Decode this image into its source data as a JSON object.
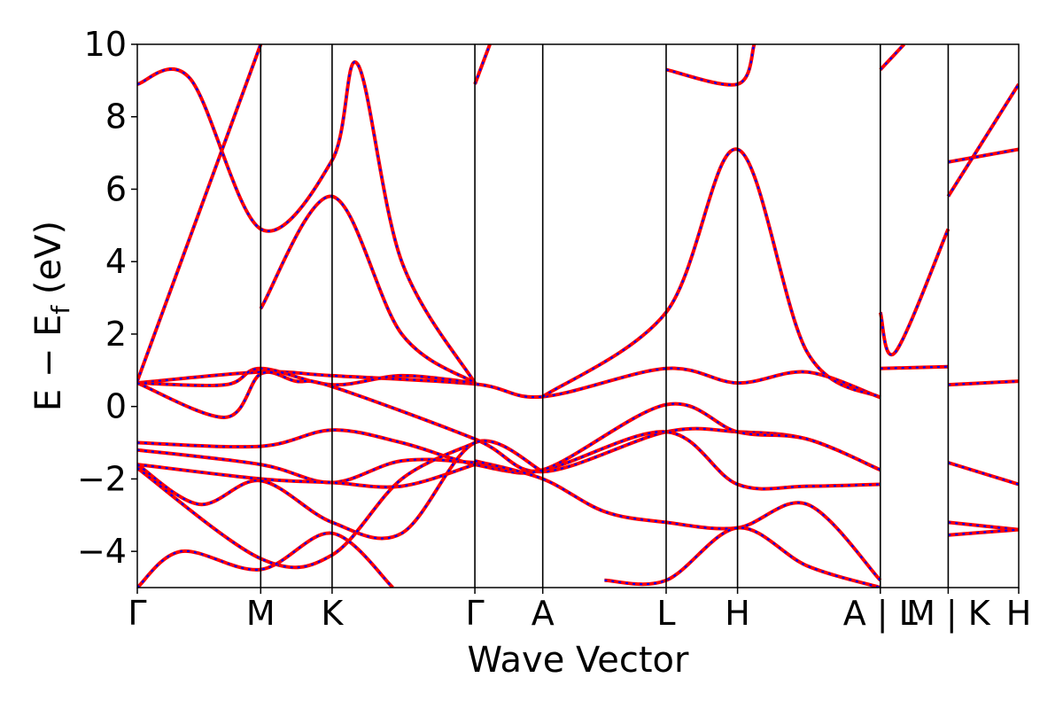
{
  "chart_data": {
    "type": "line",
    "xlabel": "Wave Vector",
    "ylabel_main": "E − E",
    "ylabel_sub": "f",
    "ylabel_unit": " (eV)",
    "ylim": [
      -5,
      10
    ],
    "yticks": [
      -4,
      -2,
      0,
      2,
      4,
      6,
      8,
      10
    ],
    "ytick_labels": [
      "−4",
      "−2",
      "0",
      "2",
      "4",
      "6",
      "8",
      "10"
    ],
    "xlim": [
      0,
      1
    ],
    "kpoints": [
      {
        "label": "Γ",
        "x": 0.0,
        "divider": false
      },
      {
        "label": "M",
        "x": 0.14,
        "divider": true
      },
      {
        "label": "K",
        "x": 0.221,
        "divider": true
      },
      {
        "label": "Γ",
        "x": 0.383,
        "divider": true
      },
      {
        "label": "A",
        "x": 0.46,
        "divider": true
      },
      {
        "label": "L",
        "x": 0.6,
        "divider": true
      },
      {
        "label": "H",
        "x": 0.681,
        "divider": true
      },
      {
        "label": "A | L",
        "x": 0.843,
        "divider": true
      },
      {
        "label": "M | K",
        "x": 0.92,
        "divider": true
      },
      {
        "label": "H",
        "x": 1.0,
        "divider": false
      }
    ],
    "series_style": {
      "solid_color": "#ff0000",
      "dashed_color": "#0000ff"
    },
    "bands": [
      [
        [
          0,
          0.65
        ],
        [
          0.14,
          0.95
        ],
        [
          0.221,
          0.85
        ],
        [
          0.383,
          0.62
        ],
        [
          0.46,
          0.27
        ],
        [
          0.6,
          1.05
        ],
        [
          0.681,
          0.65
        ],
        [
          0.76,
          0.95
        ],
        [
          0.843,
          0.25
        ]
      ],
      [
        [
          0,
          0.65
        ],
        [
          0.1,
          0.6
        ],
        [
          0.14,
          1.05
        ],
        [
          0.221,
          0.6
        ],
        [
          0.3,
          0.85
        ],
        [
          0.383,
          0.65
        ]
      ],
      [
        [
          0,
          0.65
        ],
        [
          0.1,
          -0.3
        ],
        [
          0.14,
          0.9
        ],
        [
          0.18,
          0.7
        ],
        [
          0.221,
          0.55
        ],
        [
          0.383,
          -0.9
        ],
        [
          0.46,
          -1.8
        ],
        [
          0.6,
          -0.7
        ],
        [
          0.681,
          -0.7
        ],
        [
          0.76,
          -0.9
        ],
        [
          0.843,
          -1.75
        ]
      ],
      [
        [
          0,
          -1.0
        ],
        [
          0.14,
          -1.1
        ],
        [
          0.221,
          -0.65
        ],
        [
          0.3,
          -1.0
        ],
        [
          0.383,
          -1.6
        ],
        [
          0.46,
          -1.75
        ],
        [
          0.6,
          -0.7
        ],
        [
          0.681,
          -2.15
        ],
        [
          0.76,
          -2.2
        ],
        [
          0.843,
          -2.15
        ]
      ],
      [
        [
          0,
          -1.2
        ],
        [
          0.14,
          -1.6
        ],
        [
          0.221,
          -2.1
        ],
        [
          0.3,
          -1.5
        ],
        [
          0.383,
          -1.55
        ],
        [
          0.46,
          -1.75
        ],
        [
          0.6,
          0.05
        ],
        [
          0.681,
          -0.7
        ],
        [
          0.76,
          -0.9
        ],
        [
          0.843,
          -1.75
        ]
      ],
      [
        [
          0,
          -1.6
        ],
        [
          0.14,
          -2.0
        ],
        [
          0.221,
          -2.1
        ],
        [
          0.3,
          -2.2
        ],
        [
          0.383,
          -1.6
        ]
      ],
      [
        [
          0,
          -1.6
        ],
        [
          0.07,
          -2.7
        ],
        [
          0.14,
          -2.05
        ],
        [
          0.221,
          -3.2
        ],
        [
          0.3,
          -3.5
        ],
        [
          0.383,
          -1.0
        ],
        [
          0.46,
          -1.8
        ]
      ],
      [
        [
          0,
          -1.7
        ],
        [
          0.14,
          -4.2
        ],
        [
          0.221,
          -4.1
        ],
        [
          0.3,
          -2.0
        ],
        [
          0.383,
          -1.0
        ]
      ],
      [
        [
          0,
          -5.0
        ],
        [
          0.05,
          -4.0
        ],
        [
          0.14,
          -4.5
        ],
        [
          0.221,
          -3.5
        ],
        [
          0.29,
          -5.0
        ]
      ],
      [
        [
          0.46,
          0.27
        ],
        [
          0.6,
          2.6
        ],
        [
          0.681,
          7.1
        ],
        [
          0.76,
          1.5
        ],
        [
          0.843,
          0.25
        ]
      ],
      [
        [
          0.383,
          -1.5
        ],
        [
          0.46,
          -2.0
        ],
        [
          0.53,
          -2.9
        ],
        [
          0.6,
          -3.2
        ],
        [
          0.681,
          -3.35
        ],
        [
          0.76,
          -2.7
        ],
        [
          0.843,
          -4.8
        ]
      ],
      [
        [
          0.53,
          -4.8
        ],
        [
          0.6,
          -4.8
        ],
        [
          0.681,
          -3.35
        ],
        [
          0.76,
          -4.4
        ],
        [
          0.843,
          -5.0
        ]
      ],
      [
        [
          0,
          8.9
        ],
        [
          0.06,
          9.05
        ],
        [
          0.14,
          4.9
        ],
        [
          0.221,
          6.8
        ],
        [
          0.25,
          9.45
        ],
        [
          0.3,
          4.0
        ],
        [
          0.383,
          0.65
        ]
      ],
      [
        [
          0,
          0.7
        ],
        [
          0.14,
          10.0
        ]
      ],
      [
        [
          0.14,
          2.7
        ],
        [
          0.221,
          5.8
        ],
        [
          0.3,
          2.0
        ],
        [
          0.383,
          0.65
        ]
      ],
      [
        [
          0.383,
          8.9
        ],
        [
          0.4,
          10.0
        ]
      ],
      [
        [
          0.6,
          9.3
        ],
        [
          0.681,
          8.9
        ],
        [
          0.7,
          10.0
        ]
      ],
      [
        [
          0.843,
          9.3
        ],
        [
          0.87,
          10.0
        ]
      ],
      [
        [
          0.843,
          2.6
        ],
        [
          0.86,
          1.5
        ],
        [
          0.92,
          4.9
        ]
      ],
      [
        [
          0.843,
          1.05
        ],
        [
          0.92,
          1.1
        ]
      ],
      [
        [
          0.92,
          6.75
        ],
        [
          1.0,
          7.1
        ]
      ],
      [
        [
          0.92,
          5.8
        ],
        [
          1.0,
          8.9
        ]
      ],
      [
        [
          0.92,
          0.6
        ],
        [
          1.0,
          0.7
        ]
      ],
      [
        [
          0.92,
          -1.55
        ],
        [
          1.0,
          -2.15
        ]
      ],
      [
        [
          0.92,
          -3.2
        ],
        [
          1.0,
          -3.4
        ]
      ],
      [
        [
          0.92,
          -3.55
        ],
        [
          1.0,
          -3.4
        ]
      ]
    ]
  }
}
